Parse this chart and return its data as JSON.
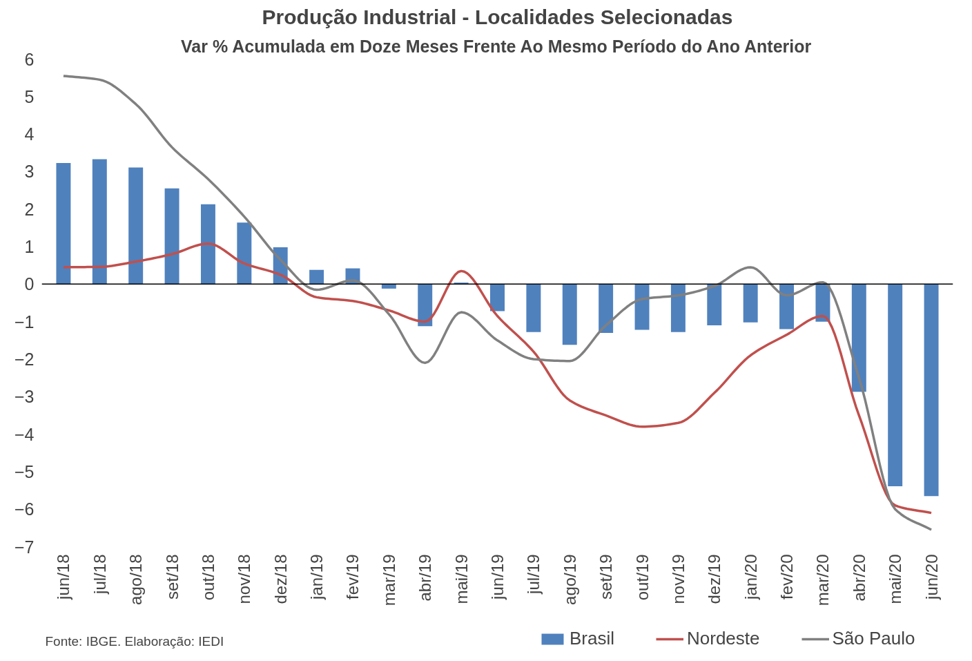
{
  "chart_data": {
    "type": "bar",
    "title": "Produção Industrial - Localidades Selecionadas",
    "subtitle": "Var % Acumulada em Doze Meses Frente Ao Mesmo Período do Ano Anterior",
    "categories": [
      "jun/18",
      "jul/18",
      "ago/18",
      "set/18",
      "out/18",
      "nov/18",
      "dez/18",
      "jan/19",
      "fev/19",
      "mar/19",
      "abr/19",
      "mai/19",
      "jun/19",
      "jul/19",
      "ago/19",
      "set/19",
      "out/19",
      "nov/19",
      "dez/19",
      "jan/20",
      "fev/20",
      "mar/20",
      "abr/20",
      "mai/20",
      "jun/20"
    ],
    "series": [
      {
        "name": "Brasil",
        "type": "bar",
        "color": "#4f81bd",
        "values": [
          3.23,
          3.33,
          3.11,
          2.55,
          2.13,
          1.64,
          0.98,
          0.38,
          0.42,
          -0.12,
          -1.12,
          0.04,
          -0.72,
          -1.28,
          -1.62,
          -1.3,
          -1.22,
          -1.28,
          -1.1,
          -1.02,
          -1.2,
          -1.0,
          -2.87,
          -5.39,
          -5.65
        ]
      },
      {
        "name": "Nordeste",
        "type": "line",
        "color": "#c0504d",
        "values": [
          0.45,
          0.46,
          0.6,
          0.8,
          1.08,
          0.55,
          0.25,
          -0.35,
          -0.45,
          -0.7,
          -1.0,
          0.35,
          -0.85,
          -1.8,
          -3.1,
          -3.5,
          -3.8,
          -3.7,
          -2.9,
          -1.9,
          -1.35,
          -0.85,
          -3.5,
          -5.9,
          -6.1
        ]
      },
      {
        "name": "São Paulo",
        "type": "line",
        "color": "#808080",
        "values": [
          5.55,
          5.45,
          4.8,
          3.65,
          2.8,
          1.8,
          0.65,
          -0.15,
          0.1,
          -0.8,
          -2.1,
          -0.75,
          -1.5,
          -2.0,
          -2.05,
          -1.1,
          -0.4,
          -0.3,
          -0.05,
          0.45,
          -0.3,
          0.05,
          -2.5,
          -6.0,
          -6.55
        ]
      }
    ],
    "ylim": [
      -7,
      6
    ],
    "yticks": [
      -7,
      -6,
      -5,
      -4,
      -3,
      -2,
      -1,
      0,
      1,
      2,
      3,
      4,
      5,
      6
    ],
    "ref_lines": [
      {
        "axis": "y",
        "value": 0,
        "color": "#000000"
      }
    ],
    "grid": false,
    "legend": "bottom",
    "line_style": "solid",
    "marker": "none",
    "annotations": [
      "Fonte: IBGE. Elaboração: IEDI"
    ]
  }
}
